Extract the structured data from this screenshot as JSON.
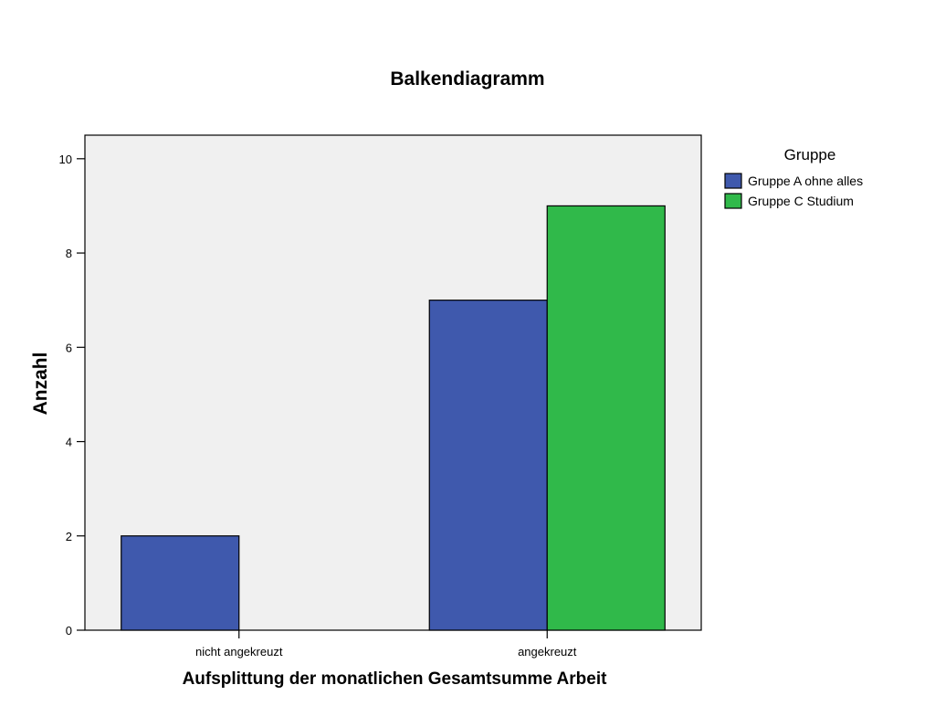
{
  "chart_data": {
    "type": "bar",
    "title": "Balkendiagramm",
    "xlabel": "Aufsplittung der monatlichen Gesamtsumme Arbeit",
    "ylabel": "Anzahl",
    "categories": [
      "nicht angekreuzt",
      "angekreuzt"
    ],
    "series": [
      {
        "name": "Gruppe A ohne alles",
        "values": [
          2,
          7
        ],
        "color": "#3f59ad"
      },
      {
        "name": "Gruppe C Studium",
        "values": [
          0,
          9
        ],
        "color": "#30b94a"
      }
    ],
    "ylim": [
      0,
      10.5
    ],
    "yticks": [
      0,
      2,
      4,
      6,
      8,
      10
    ],
    "grid": false,
    "legend_title": "Gruppe",
    "legend_position": "right",
    "plot_background": "#f0f0f0"
  }
}
